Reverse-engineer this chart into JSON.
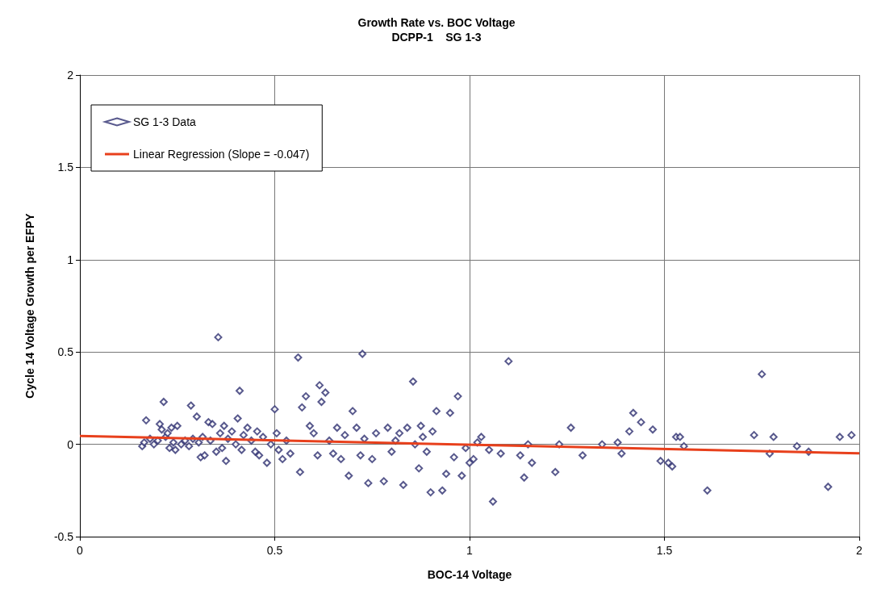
{
  "chart_data": {
    "type": "scatter",
    "title": "Growth Rate vs. BOC Voltage",
    "subtitle": "DCPP-1    SG 1-3",
    "xlabel": "BOC-14 Voltage",
    "ylabel": "Cycle 14 Voltage Growth per EFPY",
    "xlim": [
      0,
      2
    ],
    "xticks": [
      0,
      0.5,
      1,
      1.5,
      2
    ],
    "ylim": [
      -0.5,
      2
    ],
    "yticks": [
      -0.5,
      0,
      0.5,
      1,
      1.5,
      2
    ],
    "grid": true,
    "legend": "top left",
    "series": [
      {
        "name": "SG 1-3 Data",
        "type": "scatter",
        "marker": "diamond",
        "color": "#2e3070",
        "x": [
          0.16,
          0.165,
          0.17,
          0.18,
          0.19,
          0.2,
          0.205,
          0.21,
          0.215,
          0.22,
          0.225,
          0.23,
          0.235,
          0.24,
          0.245,
          0.25,
          0.26,
          0.27,
          0.28,
          0.285,
          0.29,
          0.3,
          0.305,
          0.31,
          0.315,
          0.32,
          0.33,
          0.335,
          0.34,
          0.35,
          0.355,
          0.36,
          0.365,
          0.37,
          0.375,
          0.38,
          0.39,
          0.4,
          0.405,
          0.41,
          0.415,
          0.42,
          0.43,
          0.44,
          0.45,
          0.455,
          0.46,
          0.47,
          0.48,
          0.49,
          0.5,
          0.505,
          0.51,
          0.52,
          0.53,
          0.54,
          0.56,
          0.565,
          0.57,
          0.58,
          0.59,
          0.6,
          0.61,
          0.615,
          0.62,
          0.63,
          0.64,
          0.65,
          0.66,
          0.67,
          0.68,
          0.69,
          0.7,
          0.71,
          0.72,
          0.725,
          0.73,
          0.74,
          0.75,
          0.76,
          0.78,
          0.79,
          0.8,
          0.81,
          0.82,
          0.83,
          0.84,
          0.855,
          0.86,
          0.87,
          0.875,
          0.88,
          0.89,
          0.9,
          0.905,
          0.915,
          0.93,
          0.94,
          0.95,
          0.96,
          0.97,
          0.98,
          0.99,
          1.0,
          1.01,
          1.02,
          1.03,
          1.05,
          1.06,
          1.08,
          1.1,
          1.13,
          1.14,
          1.15,
          1.16,
          1.22,
          1.23,
          1.26,
          1.29,
          1.34,
          1.38,
          1.39,
          1.41,
          1.42,
          1.44,
          1.47,
          1.49,
          1.51,
          1.52,
          1.53,
          1.54,
          1.55,
          1.61,
          1.73,
          1.75,
          1.77,
          1.78,
          1.84,
          1.87,
          1.92,
          1.95,
          1.98
        ],
        "values": [
          -0.01,
          0.01,
          0.13,
          0.03,
          0.0,
          0.02,
          0.11,
          0.08,
          0.23,
          0.04,
          0.06,
          -0.02,
          0.09,
          0.01,
          -0.03,
          0.1,
          0.0,
          0.02,
          -0.01,
          0.21,
          0.03,
          0.15,
          0.01,
          -0.07,
          0.04,
          -0.06,
          0.12,
          0.02,
          0.11,
          -0.04,
          0.58,
          0.06,
          -0.02,
          0.1,
          -0.09,
          0.03,
          0.07,
          0.0,
          0.14,
          0.29,
          -0.03,
          0.05,
          0.09,
          0.02,
          -0.04,
          0.07,
          -0.06,
          0.04,
          -0.1,
          0.0,
          0.19,
          0.06,
          -0.03,
          -0.08,
          0.02,
          -0.05,
          0.47,
          -0.15,
          0.2,
          0.26,
          0.1,
          0.06,
          -0.06,
          0.32,
          0.23,
          0.28,
          0.02,
          -0.05,
          0.09,
          -0.08,
          0.05,
          -0.17,
          0.18,
          0.09,
          -0.06,
          0.49,
          0.03,
          -0.21,
          -0.08,
          0.06,
          -0.2,
          0.09,
          -0.04,
          0.02,
          0.06,
          -0.22,
          0.09,
          0.34,
          0.0,
          -0.13,
          0.1,
          0.04,
          -0.04,
          -0.26,
          0.07,
          0.18,
          -0.25,
          -0.16,
          0.17,
          -0.07,
          0.26,
          -0.17,
          -0.02,
          -0.1,
          -0.08,
          0.01,
          0.04,
          -0.03,
          -0.31,
          -0.05,
          0.45,
          -0.06,
          -0.18,
          0.0,
          -0.1,
          -0.15,
          0.0,
          0.09,
          -0.06,
          0.0,
          0.01,
          -0.05,
          0.07,
          0.17,
          0.12,
          0.08,
          -0.09,
          -0.1,
          -0.12,
          0.04,
          0.04,
          -0.01,
          -0.25,
          0.05,
          0.38,
          -0.05,
          0.04,
          -0.01,
          -0.04,
          -0.23,
          0.04,
          0.05
        ]
      },
      {
        "name": "Linear Regression (Slope = -0.047)",
        "type": "line",
        "marker": "none",
        "line_style": "solid",
        "color": "#e8401c",
        "x": [
          0,
          2
        ],
        "values": [
          0.045,
          -0.049
        ]
      }
    ]
  }
}
